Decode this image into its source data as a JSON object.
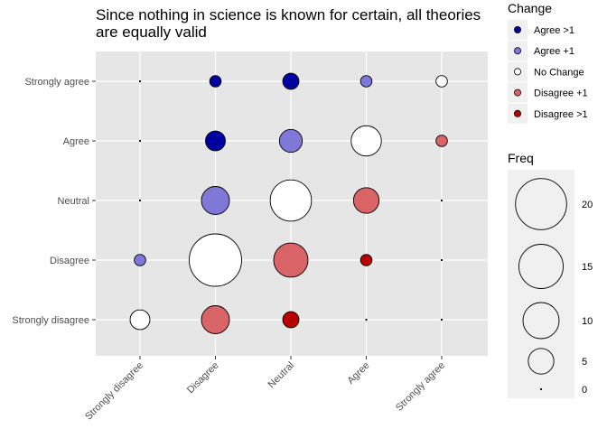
{
  "chart_data": {
    "type": "scatter",
    "title_lines": [
      "Since nothing in science is known for certain, all theories",
      "are equally valid"
    ],
    "xlabel": "",
    "ylabel": "",
    "x_categories": [
      "Strongly disagree",
      "Disagree",
      "Neutral",
      "Agree",
      "Strongly agree"
    ],
    "y_categories": [
      "Strongly disagree",
      "Disagree",
      "Neutral",
      "Agree",
      "Strongly agree"
    ],
    "grid": true,
    "size_legend": {
      "title": "Freq",
      "values": [
        20,
        15,
        10,
        5,
        0
      ]
    },
    "change_legend": {
      "title": "Change",
      "items": [
        {
          "label": "Agree >1",
          "color": "#0000a0"
        },
        {
          "label": "Agree +1",
          "color": "#8078d8"
        },
        {
          "label": "No Change",
          "color": "#ffffff"
        },
        {
          "label": "Disagree +1",
          "color": "#d86468"
        },
        {
          "label": "Disagree >1",
          "color": "#b80000"
        }
      ]
    },
    "points": [
      {
        "x": "Strongly disagree",
        "y": "Strongly agree",
        "freq": 0,
        "change": "Disagree >1"
      },
      {
        "x": "Strongly disagree",
        "y": "Agree",
        "freq": 0,
        "change": "Disagree >1"
      },
      {
        "x": "Strongly disagree",
        "y": "Neutral",
        "freq": 0,
        "change": "Disagree >1"
      },
      {
        "x": "Strongly disagree",
        "y": "Disagree",
        "freq": 1,
        "change": "Agree +1"
      },
      {
        "x": "Strongly disagree",
        "y": "Strongly disagree",
        "freq": 3,
        "change": "No Change"
      },
      {
        "x": "Disagree",
        "y": "Strongly agree",
        "freq": 1,
        "change": "Agree >1"
      },
      {
        "x": "Disagree",
        "y": "Agree",
        "freq": 3,
        "change": "Agree >1"
      },
      {
        "x": "Disagree",
        "y": "Neutral",
        "freq": 6,
        "change": "Agree +1"
      },
      {
        "x": "Disagree",
        "y": "Disagree",
        "freq": 21,
        "change": "No Change"
      },
      {
        "x": "Disagree",
        "y": "Strongly disagree",
        "freq": 6,
        "change": "Disagree +1"
      },
      {
        "x": "Neutral",
        "y": "Strongly agree",
        "freq": 2,
        "change": "Agree >1"
      },
      {
        "x": "Neutral",
        "y": "Agree",
        "freq": 4,
        "change": "Agree +1"
      },
      {
        "x": "Neutral",
        "y": "Neutral",
        "freq": 13,
        "change": "No Change"
      },
      {
        "x": "Neutral",
        "y": "Disagree",
        "freq": 9,
        "change": "Disagree +1"
      },
      {
        "x": "Neutral",
        "y": "Strongly disagree",
        "freq": 2,
        "change": "Disagree >1"
      },
      {
        "x": "Agree",
        "y": "Strongly agree",
        "freq": 1,
        "change": "Agree +1"
      },
      {
        "x": "Agree",
        "y": "Agree",
        "freq": 7,
        "change": "No Change"
      },
      {
        "x": "Agree",
        "y": "Neutral",
        "freq": 5,
        "change": "Disagree +1"
      },
      {
        "x": "Agree",
        "y": "Disagree",
        "freq": 1,
        "change": "Disagree >1"
      },
      {
        "x": "Agree",
        "y": "Strongly disagree",
        "freq": 0,
        "change": "Disagree >1"
      },
      {
        "x": "Strongly agree",
        "y": "Strongly agree",
        "freq": 1,
        "change": "No Change"
      },
      {
        "x": "Strongly agree",
        "y": "Agree",
        "freq": 1,
        "change": "Disagree +1"
      },
      {
        "x": "Strongly agree",
        "y": "Neutral",
        "freq": 0,
        "change": "Disagree >1"
      },
      {
        "x": "Strongly agree",
        "y": "Disagree",
        "freq": 0,
        "change": "Disagree >1"
      },
      {
        "x": "Strongly agree",
        "y": "Strongly disagree",
        "freq": 0,
        "change": "Disagree >1"
      }
    ]
  }
}
